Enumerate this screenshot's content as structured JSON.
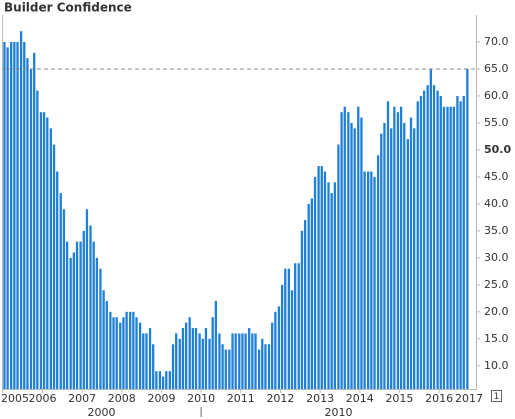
{
  "chart_data": {
    "type": "bar",
    "title": "Builder Confidence",
    "x": [
      2005,
      2005.08,
      2005.17,
      2005.25,
      2005.33,
      2005.42,
      2005.5,
      2005.58,
      2005.67,
      2005.75,
      2005.83,
      2005.92,
      2006,
      2006.08,
      2006.17,
      2006.25,
      2006.33,
      2006.42,
      2006.5,
      2006.58,
      2006.67,
      2006.75,
      2006.83,
      2006.92,
      2007,
      2007.08,
      2007.17,
      2007.25,
      2007.33,
      2007.42,
      2007.5,
      2007.58,
      2007.67,
      2007.75,
      2007.83,
      2007.92,
      2008,
      2008.08,
      2008.17,
      2008.25,
      2008.33,
      2008.42,
      2008.5,
      2008.58,
      2008.67,
      2008.75,
      2008.83,
      2008.92,
      2009,
      2009.08,
      2009.17,
      2009.25,
      2009.33,
      2009.42,
      2009.5,
      2009.58,
      2009.67,
      2009.75,
      2009.83,
      2009.92,
      2010,
      2010.08,
      2010.17,
      2010.25,
      2010.33,
      2010.42,
      2010.5,
      2010.58,
      2010.67,
      2010.75,
      2010.83,
      2010.92,
      2011,
      2011.08,
      2011.17,
      2011.25,
      2011.33,
      2011.42,
      2011.5,
      2011.58,
      2011.67,
      2011.75,
      2011.83,
      2011.92,
      2012,
      2012.08,
      2012.17,
      2012.25,
      2012.33,
      2012.42,
      2012.5,
      2012.58,
      2012.67,
      2012.75,
      2012.83,
      2012.92,
      2013,
      2013.08,
      2013.17,
      2013.25,
      2013.33,
      2013.42,
      2013.5,
      2013.58,
      2013.67,
      2013.75,
      2013.83,
      2013.92,
      2014,
      2014.08,
      2014.17,
      2014.25,
      2014.33,
      2014.42,
      2014.5,
      2014.58,
      2014.67,
      2014.75,
      2014.83,
      2014.92,
      2015,
      2015.08,
      2015.17,
      2015.25,
      2015.33,
      2015.42,
      2015.5,
      2015.58,
      2015.67,
      2015.75,
      2015.83,
      2015.92,
      2016,
      2016.08,
      2016.17,
      2016.25,
      2016.33,
      2016.42,
      2016.5,
      2016.58,
      2016.67
    ],
    "values": [
      70,
      69,
      70,
      70,
      70,
      72,
      70,
      67,
      65,
      68,
      61,
      57,
      57,
      56,
      54,
      51,
      46,
      42,
      39,
      33,
      30,
      31,
      33,
      33,
      35,
      39,
      36,
      33,
      30,
      28,
      24,
      22,
      20,
      19,
      19,
      18,
      19,
      20,
      20,
      20,
      19,
      18,
      16,
      16,
      17,
      14,
      9,
      9,
      8,
      9,
      9,
      14,
      16,
      15,
      17,
      18,
      19,
      17,
      17,
      16,
      15,
      17,
      15,
      19,
      22,
      16,
      14,
      13,
      13,
      16,
      16,
      16,
      16,
      16,
      17,
      16,
      16,
      13,
      15,
      14,
      14,
      18,
      20,
      21,
      25,
      28,
      28,
      24,
      29,
      29,
      35,
      37,
      40,
      41,
      45,
      47,
      47,
      46,
      44,
      42,
      44,
      51,
      57,
      58,
      57,
      55,
      54,
      58,
      56,
      46,
      46,
      46,
      45,
      49,
      53,
      55,
      59,
      54,
      58,
      57,
      58,
      55,
      52,
      56,
      54,
      59,
      60,
      61,
      62,
      65,
      62,
      61,
      60,
      58,
      58,
      58,
      58,
      60,
      59,
      60,
      65
    ],
    "color": "#1f80d6",
    "xlim": [
      2004.98,
      2016.93
    ],
    "xticks": [
      2005,
      2006,
      2007,
      2008,
      2009,
      2010,
      2011,
      2012,
      2013,
      2014,
      2015,
      2016,
      2017
    ],
    "decade_labels": [
      "2000",
      "2010"
    ],
    "ylim": [
      5.7,
      75
    ],
    "yticks": [
      {
        "value": 10,
        "label": "10.0"
      },
      {
        "value": 15,
        "label": "15.0"
      },
      {
        "value": 20,
        "label": "20.0"
      },
      {
        "value": 25,
        "label": "25.0"
      },
      {
        "value": 30,
        "label": "30.0"
      },
      {
        "value": 35,
        "label": "35.0"
      },
      {
        "value": 40,
        "label": "40.0"
      },
      {
        "value": 45,
        "label": "45.0"
      },
      {
        "value": 50,
        "label": "50.0",
        "bold": true
      },
      {
        "value": 55,
        "label": "55.0"
      },
      {
        "value": 60,
        "label": "60.0"
      },
      {
        "value": 65,
        "label": "65.0"
      },
      {
        "value": 70,
        "label": "70.0"
      }
    ],
    "reference_value": 65
  }
}
